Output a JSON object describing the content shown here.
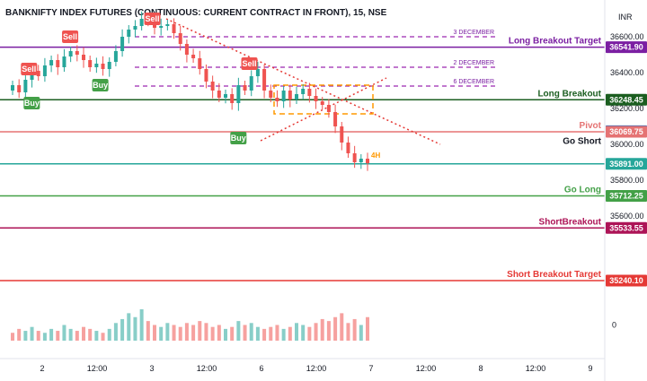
{
  "title": "BANKNIFTY INDEX FUTURES (CONTINUOUS: CURRENT CONTRACT IN FRONT), 15, NSE",
  "currency": "INR",
  "chart_data": {
    "type": "candlestick",
    "ylim": [
      35130,
      36680
    ],
    "y_ticks": [
      35600,
      35800,
      36000,
      36200,
      36400,
      36600
    ],
    "x_ticks": [
      {
        "label": "2",
        "pos": 0.0
      },
      {
        "label": "12:00",
        "pos": 1.0
      },
      {
        "label": "3",
        "pos": 2.0
      },
      {
        "label": "12:00",
        "pos": 3.0
      },
      {
        "label": "6",
        "pos": 4.0
      },
      {
        "label": "12:00",
        "pos": 5.0
      },
      {
        "label": "7",
        "pos": 6.0
      },
      {
        "label": "12:00",
        "pos": 7.0
      },
      {
        "label": "8",
        "pos": 8.0
      },
      {
        "label": "12:00",
        "pos": 9.0
      },
      {
        "label": "9",
        "pos": 10.0
      }
    ],
    "levels": [
      {
        "name": "Long Breakout Target",
        "value": 36541.9,
        "price_label": "36541.90",
        "color": "#7b1fa2",
        "style": "solid"
      },
      {
        "name": "Long Breakout",
        "value": 36248.45,
        "price_label": "36248.45",
        "color": "#1b5e20",
        "style": "solid"
      },
      {
        "name": "Go Short",
        "value": 36073.1,
        "price_label": "36073.10",
        "color": "#1565c0",
        "style": "none"
      },
      {
        "name": "Pivot",
        "value": 36069.75,
        "price_label": "36069.75",
        "color": "#e57373",
        "style": "solid"
      },
      {
        "name": "",
        "value": 35891.0,
        "price_label": "35891.00",
        "color": "#26a69a",
        "style": "solid"
      },
      {
        "name": "Go Long",
        "value": 35712.25,
        "price_label": "35712.25",
        "color": "#43a047",
        "style": "solid"
      },
      {
        "name": "ShortBreakout",
        "value": 35533.55,
        "price_label": "35533.55",
        "color": "#ad1457",
        "style": "solid"
      },
      {
        "name": "Short Breakout Target",
        "value": 35240.1,
        "price_label": "35240.10",
        "color": "#e53935",
        "style": "solid"
      }
    ],
    "date_lines": [
      {
        "label": "3 DECEMBER",
        "value": 36600
      },
      {
        "label": "2 DECEMBER",
        "value": 36430
      },
      {
        "label": "6 DECEMBER",
        "value": 36325
      }
    ],
    "signals": [
      {
        "label": "Sell",
        "type": "sell",
        "x": 0.3,
        "y": 36420
      },
      {
        "label": "Buy",
        "type": "buy",
        "x": 0.35,
        "y": 36230
      },
      {
        "label": "Sell",
        "type": "sell",
        "x": 1.05,
        "y": 36600
      },
      {
        "label": "Buy",
        "type": "buy",
        "x": 1.6,
        "y": 36330
      },
      {
        "label": "Sell",
        "type": "sell",
        "x": 2.55,
        "y": 36700
      },
      {
        "label": "Buy",
        "type": "buy",
        "x": 4.12,
        "y": 36035
      },
      {
        "label": "Sell",
        "type": "sell",
        "x": 4.32,
        "y": 36450
      }
    ],
    "closes": [
      36330,
      36290,
      36360,
      36410,
      36380,
      36440,
      36470,
      36430,
      36490,
      36520,
      36500,
      36470,
      36430,
      36450,
      36420,
      36460,
      36520,
      36600,
      36640,
      36660,
      36700,
      36690,
      36650,
      36660,
      36670,
      36620,
      36560,
      36500,
      36480,
      36420,
      36350,
      36300,
      36260,
      36280,
      36230,
      36330,
      36300,
      36380,
      36420,
      36300,
      36260,
      36240,
      36300,
      36250,
      36280,
      36310,
      36270,
      36240,
      36220,
      36180,
      36100,
      36010,
      35950,
      35900,
      35920,
      35895
    ],
    "volume": [
      4,
      6,
      5,
      7,
      5,
      4,
      6,
      5,
      8,
      6,
      5,
      7,
      6,
      5,
      4,
      6,
      9,
      11,
      14,
      12,
      16,
      10,
      8,
      7,
      9,
      8,
      7,
      9,
      8,
      10,
      9,
      7,
      8,
      6,
      7,
      10,
      8,
      9,
      7,
      6,
      7,
      8,
      6,
      7,
      9,
      8,
      7,
      9,
      11,
      10,
      12,
      14,
      9,
      11,
      8,
      12
    ],
    "annotations": [
      {
        "label": "4H",
        "x": 6.0,
        "y": 35925
      }
    ]
  }
}
